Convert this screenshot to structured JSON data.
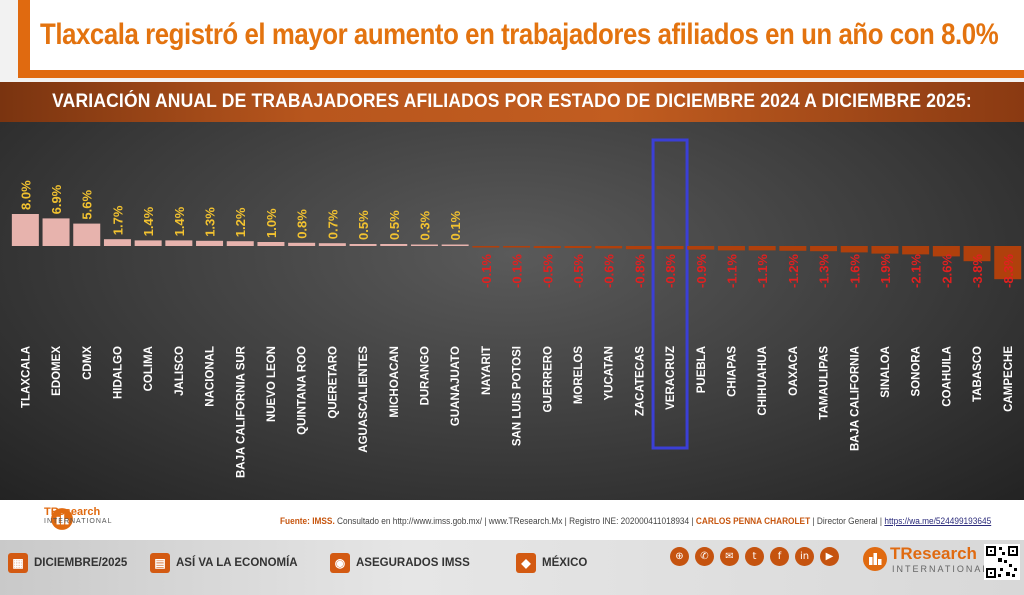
{
  "header": {
    "title": "Tlaxcala registró el mayor aumento en trabajadores afiliados en un año con 8.0%",
    "subtitle": "VARIACIÓN ANUAL DE TRABAJADORES AFILIADOS POR ESTADO DE DICIEMBRE 2024 A DICIEMBRE 2025:"
  },
  "chart_data": {
    "type": "bar",
    "title": "VARIACIÓN ANUAL DE TRABAJADORES AFILIADOS POR ESTADO DE DICIEMBRE 2024 A DICIEMBRE 2025:",
    "categories": [
      "TLAXCALA",
      "EDOMEX",
      "CDMX",
      "HIDALGO",
      "COLIMA",
      "JALISCO",
      "NACIONAL",
      "BAJA CALIFORNIA SUR",
      "NUEVO LEON",
      "QUINTANA ROO",
      "QUERETARO",
      "AGUASCALIENTES",
      "MICHOACAN",
      "DURANGO",
      "GUANAJUATO",
      "NAYARIT",
      "SAN LUIS POTOSI",
      "GUERRERO",
      "MORELOS",
      "YUCATAN",
      "ZACATECAS",
      "VERACRUZ",
      "PUEBLA",
      "CHIAPAS",
      "CHIHUAHUA",
      "OAXACA",
      "TAMAULIPAS",
      "BAJA CALIFORNIA",
      "SINALOA",
      "SONORA",
      "COAHUILA",
      "TABASCO",
      "CAMPECHE"
    ],
    "values": [
      8.0,
      6.9,
      5.6,
      1.7,
      1.4,
      1.4,
      1.3,
      1.2,
      1.0,
      0.8,
      0.7,
      0.5,
      0.5,
      0.3,
      0.1,
      -0.1,
      -0.1,
      -0.5,
      -0.5,
      -0.6,
      -0.8,
      -0.8,
      -0.9,
      -1.1,
      -1.1,
      -1.2,
      -1.3,
      -1.6,
      -1.9,
      -2.1,
      -2.6,
      -3.8,
      -8.3
    ],
    "labels": [
      "8.0%",
      "6.9%",
      "5.6%",
      "1.7%",
      "1.4%",
      "1.4%",
      "1.3%",
      "1.2%",
      "1.0%",
      "0.8%",
      "0.7%",
      "0.5%",
      "0.5%",
      "0.3%",
      "0.1%",
      "-0.1%",
      "-0.1%",
      "-0.5%",
      "-0.5%",
      "-0.6%",
      "-0.8%",
      "-0.8%",
      "-0.9%",
      "-1.1%",
      "-1.1%",
      "-1.2%",
      "-1.3%",
      "-1.6%",
      "-1.9%",
      "-2.1%",
      "-2.6%",
      "-3.8%",
      "-8.3%"
    ],
    "highlight": "VERACRUZ",
    "highlight_color": "#3b3fd6",
    "positive_color": "#e7b3ad",
    "positive_label_color": "#f2c230",
    "negative_color": "#b0400c",
    "negative_label_color": "#e02020",
    "grid": false,
    "legend": "none"
  },
  "footer": {
    "brand_name": "TResearch",
    "brand_sub": "INTERNATIONAL",
    "source_label": "Fuente: IMSS.",
    "source_text": " Consultado en http://www.imss.gob.mx/  |  www.TResearch.Mx | Registro INE: 202000411018934  |",
    "author": " CARLOS PENNA CHAROLET",
    "role": " | Director General | ",
    "link": "https://wa.me/5244991936​45"
  },
  "bottom_bar": {
    "items": [
      {
        "icon": "calendar-icon",
        "glyph": "▦",
        "label": "DICIEMBRE/2025"
      },
      {
        "icon": "chart-icon",
        "glyph": "▤",
        "label": "ASÍ VA LA ECONOMÍA"
      },
      {
        "icon": "people-icon",
        "glyph": "◉",
        "label": "ASEGURADOS IMSS"
      },
      {
        "icon": "map-icon",
        "glyph": "◆",
        "label": "MÉXICO"
      }
    ],
    "social": [
      {
        "icon": "globe-icon",
        "glyph": "⊕"
      },
      {
        "icon": "phone-icon",
        "glyph": "✆"
      },
      {
        "icon": "mail-icon",
        "glyph": "✉"
      },
      {
        "icon": "twitter-icon",
        "glyph": "t"
      },
      {
        "icon": "facebook-icon",
        "glyph": "f"
      },
      {
        "icon": "linkedin-icon",
        "glyph": "in"
      },
      {
        "icon": "youtube-icon",
        "glyph": "▶"
      }
    ],
    "brand_name": "TResearch",
    "brand_sub": "INTERNATIONAL"
  }
}
